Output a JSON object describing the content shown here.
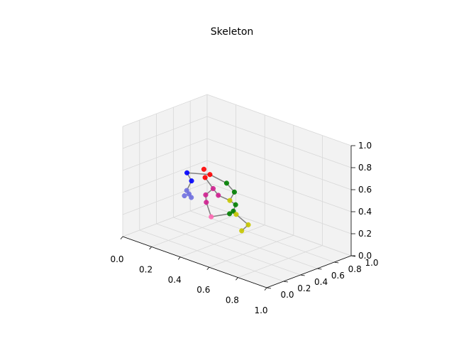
{
  "chart_data": {
    "type": "scatter",
    "projection": "3d",
    "title": "Skeleton",
    "xlabel": "",
    "ylabel": "",
    "zlabel": "",
    "xlim": [
      0,
      1
    ],
    "ylim": [
      0,
      1
    ],
    "zlim": [
      0,
      1
    ],
    "grid": true,
    "ticks": {
      "x": [
        "0.0",
        "0.2",
        "0.4",
        "0.6",
        "0.8",
        "1.0"
      ],
      "y": [
        "0.0",
        "0.2",
        "0.4",
        "0.6",
        "0.8",
        "1.0"
      ],
      "z": [
        "0.0",
        "0.2",
        "0.4",
        "0.6",
        "0.8",
        "1.0"
      ]
    },
    "colors": {
      "pane": "#f2f2f2",
      "grid": "#d8d8d8",
      "axis": "#000000",
      "bone": "#808080"
    },
    "series": [
      {
        "color": "#ff0000",
        "points": [
          [
            0.3,
            0.45,
            0.62
          ],
          [
            0.33,
            0.47,
            0.58
          ],
          [
            0.32,
            0.43,
            0.56
          ]
        ]
      },
      {
        "color": "#0000ff",
        "points": [
          [
            0.2,
            0.42,
            0.55
          ],
          [
            0.22,
            0.44,
            0.48
          ]
        ]
      },
      {
        "color": "#6f6fe0",
        "points": [
          [
            0.21,
            0.4,
            0.4
          ],
          [
            0.22,
            0.41,
            0.37
          ],
          [
            0.2,
            0.39,
            0.35
          ],
          [
            0.23,
            0.42,
            0.34
          ]
        ]
      },
      {
        "color": "#008000",
        "points": [
          [
            0.44,
            0.48,
            0.55
          ],
          [
            0.5,
            0.47,
            0.5
          ],
          [
            0.52,
            0.45,
            0.4
          ],
          [
            0.51,
            0.44,
            0.34
          ],
          [
            0.49,
            0.43,
            0.31
          ]
        ]
      },
      {
        "color": "#d02090",
        "points": [
          [
            0.37,
            0.44,
            0.48
          ],
          [
            0.4,
            0.45,
            0.43
          ],
          [
            0.33,
            0.42,
            0.41
          ],
          [
            0.34,
            0.41,
            0.35
          ]
        ]
      },
      {
        "color": "#ff69b4",
        "points": [
          [
            0.38,
            0.4,
            0.24
          ]
        ]
      },
      {
        "color": "#c8c800",
        "points": [
          [
            0.48,
            0.45,
            0.42
          ],
          [
            0.53,
            0.44,
            0.32
          ],
          [
            0.62,
            0.43,
            0.27
          ],
          [
            0.58,
            0.42,
            0.2
          ]
        ]
      }
    ],
    "bones": [
      [
        [
          0.2,
          0.42,
          0.55
        ],
        [
          0.22,
          0.44,
          0.48
        ]
      ],
      [
        [
          0.22,
          0.44,
          0.48
        ],
        [
          0.21,
          0.4,
          0.4
        ]
      ],
      [
        [
          0.21,
          0.4,
          0.4
        ],
        [
          0.22,
          0.41,
          0.37
        ]
      ],
      [
        [
          0.22,
          0.41,
          0.37
        ],
        [
          0.23,
          0.42,
          0.34
        ]
      ],
      [
        [
          0.2,
          0.42,
          0.55
        ],
        [
          0.33,
          0.47,
          0.58
        ]
      ],
      [
        [
          0.33,
          0.47,
          0.58
        ],
        [
          0.44,
          0.48,
          0.55
        ]
      ],
      [
        [
          0.44,
          0.48,
          0.55
        ],
        [
          0.5,
          0.47,
          0.5
        ]
      ],
      [
        [
          0.5,
          0.47,
          0.5
        ],
        [
          0.48,
          0.45,
          0.42
        ]
      ],
      [
        [
          0.48,
          0.45,
          0.42
        ],
        [
          0.52,
          0.45,
          0.4
        ]
      ],
      [
        [
          0.52,
          0.45,
          0.4
        ],
        [
          0.51,
          0.44,
          0.34
        ]
      ],
      [
        [
          0.51,
          0.44,
          0.34
        ],
        [
          0.53,
          0.44,
          0.32
        ]
      ],
      [
        [
          0.53,
          0.44,
          0.32
        ],
        [
          0.62,
          0.43,
          0.27
        ]
      ],
      [
        [
          0.62,
          0.43,
          0.27
        ],
        [
          0.58,
          0.42,
          0.2
        ]
      ],
      [
        [
          0.51,
          0.44,
          0.34
        ],
        [
          0.49,
          0.43,
          0.31
        ]
      ],
      [
        [
          0.49,
          0.43,
          0.31
        ],
        [
          0.38,
          0.4,
          0.24
        ]
      ],
      [
        [
          0.32,
          0.43,
          0.56
        ],
        [
          0.37,
          0.44,
          0.48
        ]
      ],
      [
        [
          0.37,
          0.44,
          0.48
        ],
        [
          0.4,
          0.45,
          0.43
        ]
      ],
      [
        [
          0.37,
          0.44,
          0.48
        ],
        [
          0.33,
          0.42,
          0.41
        ]
      ],
      [
        [
          0.33,
          0.42,
          0.41
        ],
        [
          0.34,
          0.41,
          0.35
        ]
      ],
      [
        [
          0.4,
          0.45,
          0.43
        ],
        [
          0.48,
          0.45,
          0.42
        ]
      ],
      [
        [
          0.34,
          0.41,
          0.35
        ],
        [
          0.38,
          0.4,
          0.24
        ]
      ]
    ]
  }
}
